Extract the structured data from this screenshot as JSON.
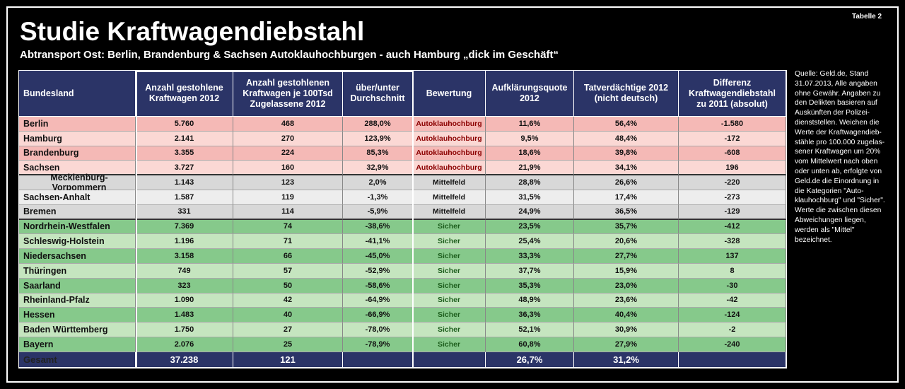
{
  "header": {
    "title": "Studie Kraftwagendiebstahl",
    "subtitle": "Abtransport Ost: Berlin, Brandenburg & Sachsen Autoklauhochburgen - auch Hamburg „dick im Geschäft“",
    "tag": "Tabelle 2"
  },
  "note": [
    "Quelle: Geld.de, Stand",
    "31.07.2013, Alle angaben",
    "ohne Gewähr. Angaben zu",
    "den Delikten basieren auf",
    "Auskünften der Polizei-",
    "dienststellen. Weichen die",
    "Werte der Kraftwagendieb-",
    "stähle pro 100.000 zugelas-",
    "sener Kraftwagen um 20%",
    "vom Mittelwert nach oben",
    "oder unten ab, erfolgte von",
    "Geld.de die Einordnung in",
    "die Kategorien \"Auto-",
    "klauhochburg\" und \"Sicher\".",
    "Werte die zwischen diesen",
    "Abweichungen liegen,",
    "werden als \"Mittel\"",
    "bezeichnet."
  ],
  "table": {
    "columns": [
      "Bundesland",
      "Anzahl gestohlene\nKraftwagen 2012",
      "Anzahl gestohlenen\nKraftwagen je 100Tsd\nZugelassene 2012",
      "über/unter\nDurchschnitt",
      "Bewertung",
      "Aufklärungsquote\n2012",
      "Tatverdächtige 2012\n(nicht deutsch)",
      "Differenz\nKraftwagendiebstahl\nzu 2011 (absolut)"
    ],
    "rows": [
      [
        "Berlin",
        "5.760",
        "468",
        "288,0%",
        "Autoklauhochburg",
        "11,6%",
        "56,4%",
        "-1.580"
      ],
      [
        "Hamburg",
        "2.141",
        "270",
        "123,9%",
        "Autoklauhochburg",
        "9,5%",
        "48,4%",
        "-172"
      ],
      [
        "Brandenburg",
        "3.355",
        "224",
        "85,3%",
        "Autoklauhochburg",
        "18,6%",
        "39,8%",
        "-608"
      ],
      [
        "Sachsen",
        "3.727",
        "160",
        "32,9%",
        "Autoklauhochburg",
        "21,9%",
        "34,1%",
        "196"
      ],
      [
        "Mecklenburg-Vorpommern",
        "1.143",
        "123",
        "2,0%",
        "Mittelfeld",
        "28,8%",
        "26,6%",
        "-220"
      ],
      [
        "Sachsen-Anhalt",
        "1.587",
        "119",
        "-1,3%",
        "Mittelfeld",
        "31,5%",
        "17,4%",
        "-273"
      ],
      [
        "Bremen",
        "331",
        "114",
        "-5,9%",
        "Mittelfeld",
        "24,9%",
        "36,5%",
        "-129"
      ],
      [
        "Nordrhein-Westfalen",
        "7.369",
        "74",
        "-38,6%",
        "Sicher",
        "23,5%",
        "35,7%",
        "-412"
      ],
      [
        "Schleswig-Holstein",
        "1.196",
        "71",
        "-41,1%",
        "Sicher",
        "25,4%",
        "20,6%",
        "-328"
      ],
      [
        "Niedersachsen",
        "3.158",
        "66",
        "-45,0%",
        "Sicher",
        "33,3%",
        "27,7%",
        "137"
      ],
      [
        "Thüringen",
        "749",
        "57",
        "-52,9%",
        "Sicher",
        "37,7%",
        "15,9%",
        "8"
      ],
      [
        "Saarland",
        "323",
        "50",
        "-58,6%",
        "Sicher",
        "35,3%",
        "23,0%",
        "-30"
      ],
      [
        "Rheinland-Pfalz",
        "1.090",
        "42",
        "-64,9%",
        "Sicher",
        "48,9%",
        "23,6%",
        "-42"
      ],
      [
        "Hessen",
        "1.483",
        "40",
        "-66,9%",
        "Sicher",
        "36,3%",
        "40,4%",
        "-124"
      ],
      [
        "Baden Württemberg",
        "1.750",
        "27",
        "-78,0%",
        "Sicher",
        "52,1%",
        "30,9%",
        "-2"
      ],
      [
        "Bayern",
        "2.076",
        "25",
        "-78,9%",
        "Sicher",
        "60,8%",
        "27,9%",
        "-240"
      ]
    ],
    "footer": {
      "label": "Gesamt",
      "total_stolen": "37.238",
      "per_100k": "121",
      "clearance_rate": "26,7%",
      "suspects_non_german": "31,2%"
    }
  }
}
